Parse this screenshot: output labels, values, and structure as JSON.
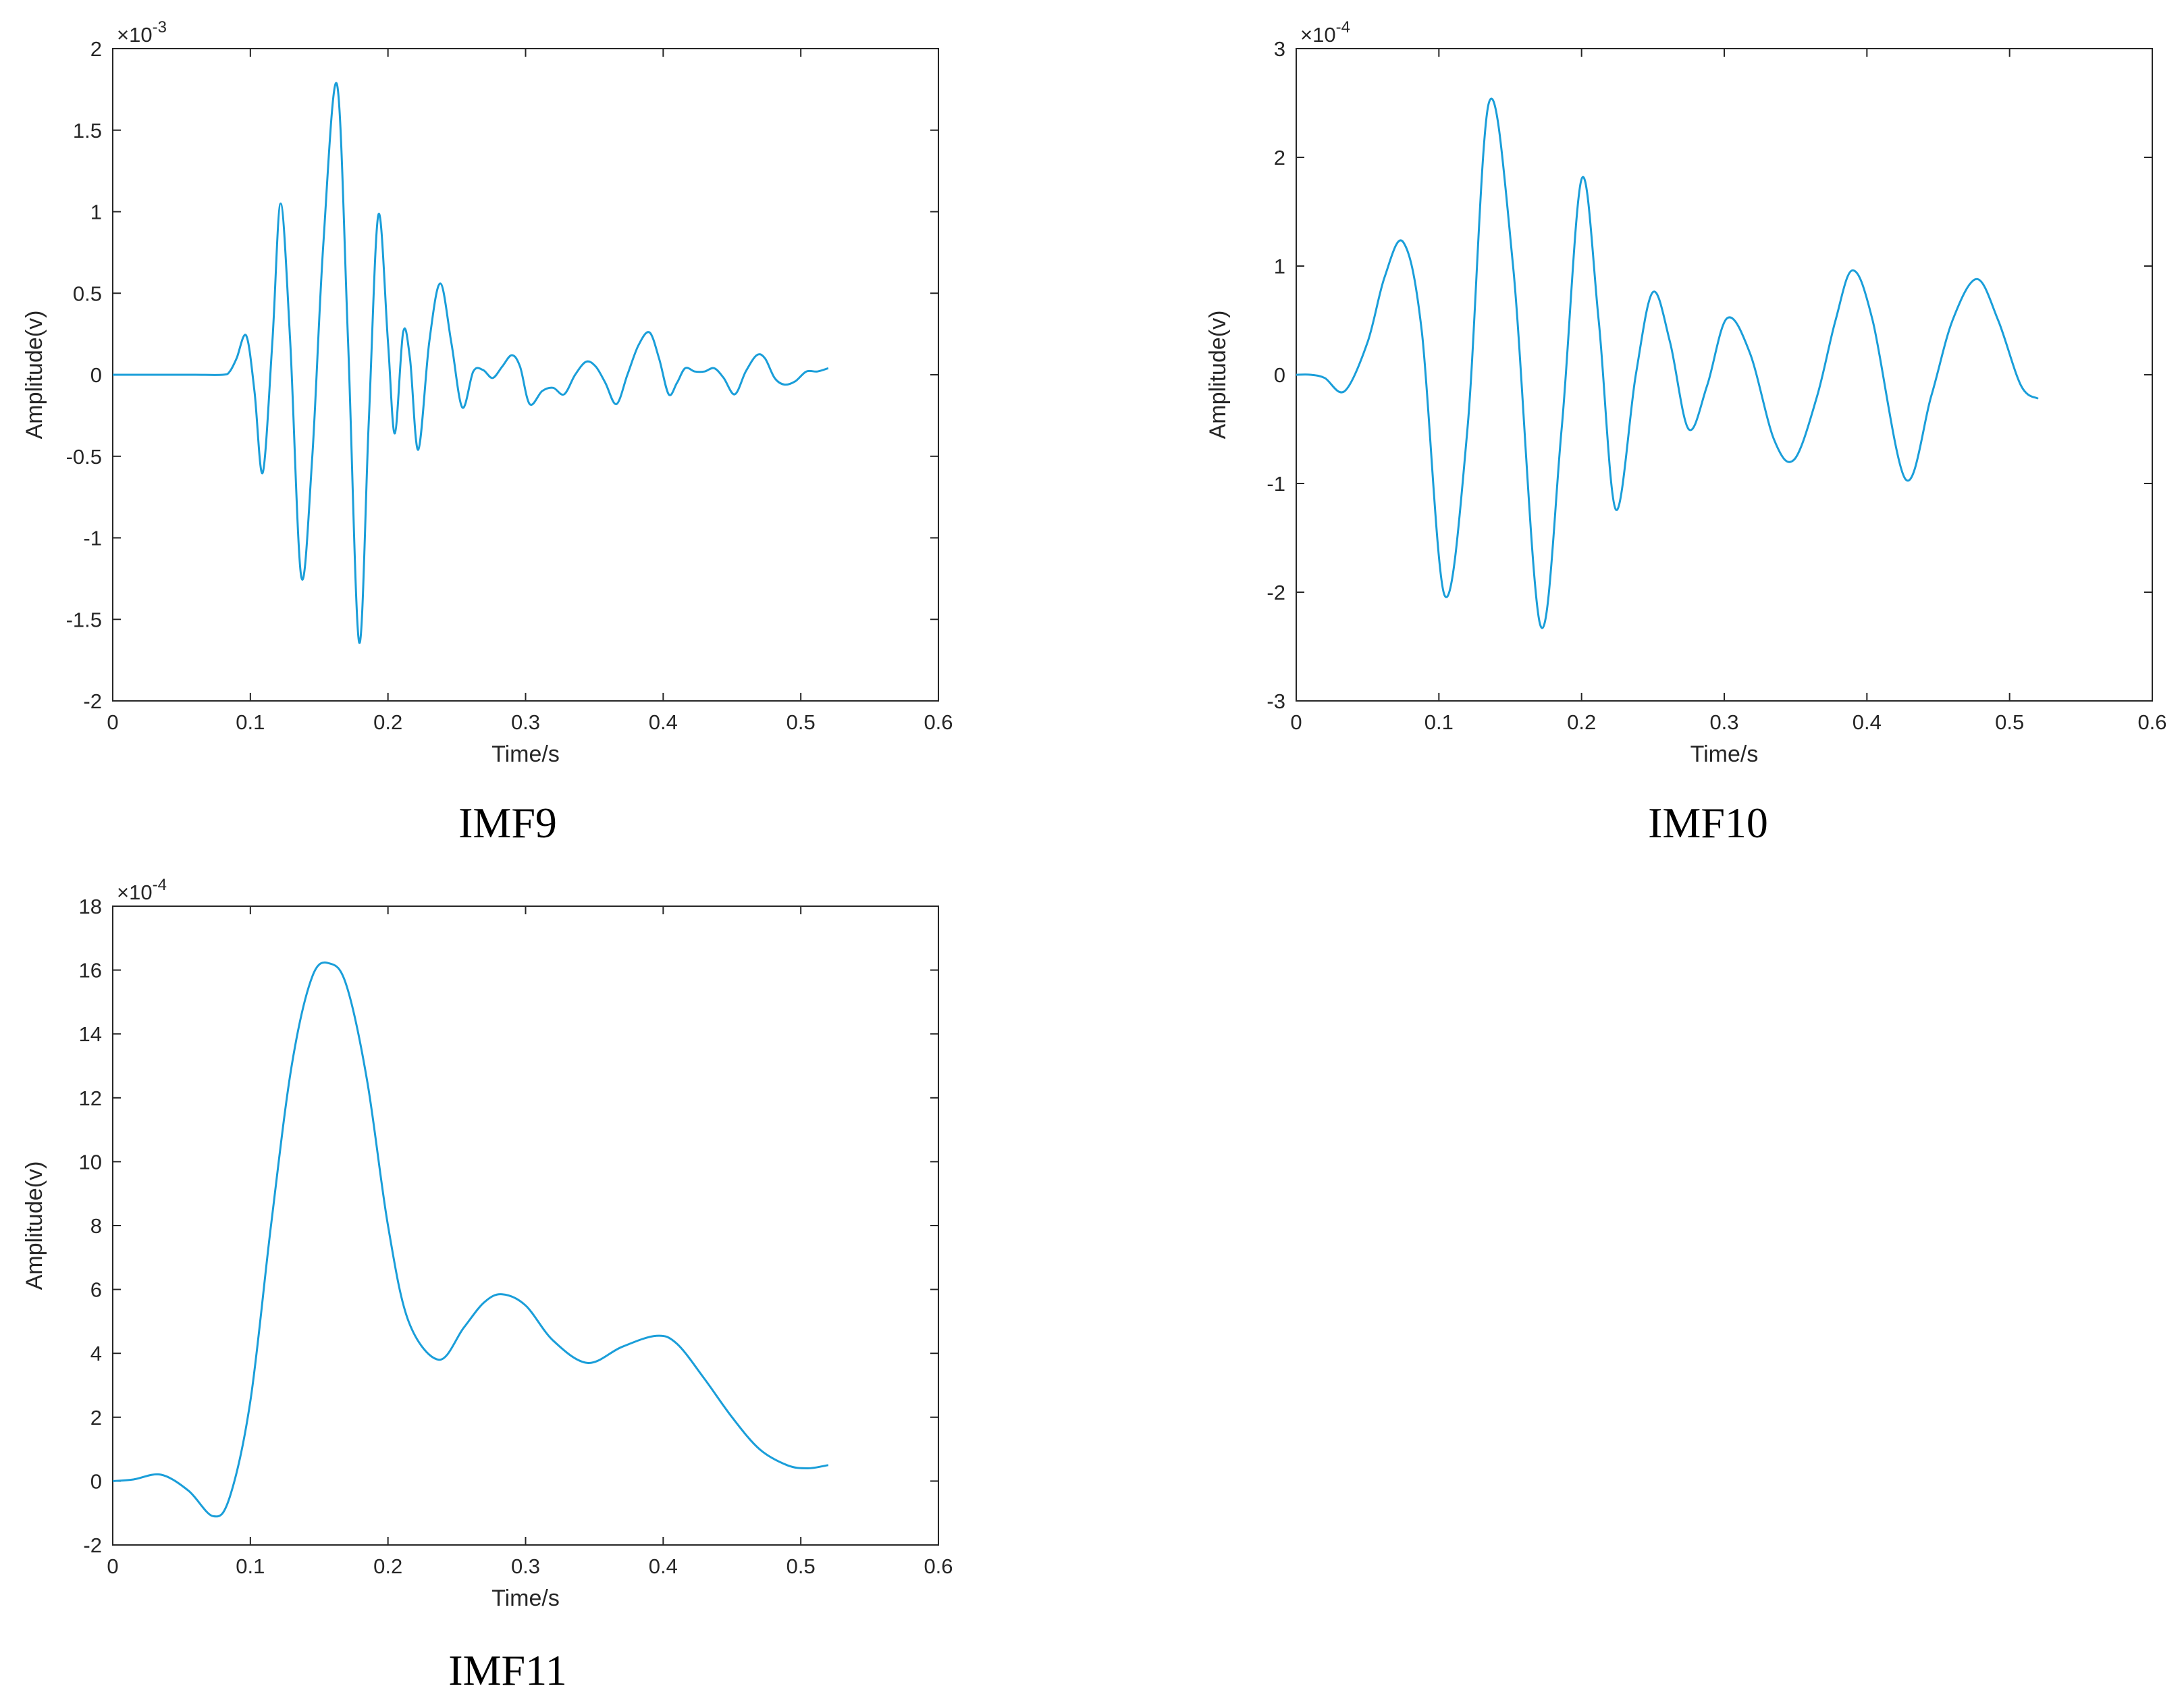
{
  "chart_data": [
    {
      "type": "line",
      "caption": "IMF9",
      "xlabel": "Time/s",
      "ylabel": "Amplitude(v)",
      "exponent_base": "×10",
      "exponent_power": "-3",
      "xlim": [
        0,
        0.6
      ],
      "ylim": [
        -2,
        2
      ],
      "xticks": [
        "0",
        "0.1",
        "0.2",
        "0.3",
        "0.4",
        "0.5",
        "0.6"
      ],
      "yticks": [
        "2",
        "1.5",
        "1",
        "0.5",
        "0",
        "-0.5",
        "-1",
        "-1.5",
        "-2"
      ],
      "color": "#1a9ed9",
      "grid": false,
      "series": [
        {
          "x": [
            0,
            0.02,
            0.04,
            0.06,
            0.08,
            0.085,
            0.09,
            0.097,
            0.103,
            0.109,
            0.116,
            0.122,
            0.129,
            0.137,
            0.145,
            0.153,
            0.163,
            0.171,
            0.179,
            0.186,
            0.193,
            0.2,
            0.205,
            0.211,
            0.216,
            0.222,
            0.23,
            0.238,
            0.246,
            0.254,
            0.262,
            0.269,
            0.276,
            0.283,
            0.29,
            0.296,
            0.303,
            0.312,
            0.32,
            0.328,
            0.336,
            0.344,
            0.351,
            0.358,
            0.366,
            0.374,
            0.382,
            0.39,
            0.397,
            0.404,
            0.41,
            0.416,
            0.423,
            0.43,
            0.437,
            0.444,
            0.452,
            0.46,
            0.468,
            0.474,
            0.481,
            0.488,
            0.496,
            0.504,
            0.512,
            0.52
          ],
          "y": [
            0,
            0,
            0,
            0,
            0,
            0.02,
            0.1,
            0.24,
            -0.1,
            -0.6,
            0.2,
            1.05,
            0.2,
            -1.24,
            -0.5,
            0.8,
            1.78,
            0.2,
            -1.64,
            -0.3,
            0.98,
            0.2,
            -0.36,
            0.26,
            0.1,
            -0.46,
            0.2,
            0.56,
            0.2,
            -0.2,
            0.02,
            0.03,
            -0.02,
            0.05,
            0.12,
            0.05,
            -0.18,
            -0.1,
            -0.08,
            -0.12,
            0,
            0.08,
            0.05,
            -0.05,
            -0.18,
            0,
            0.18,
            0.26,
            0.1,
            -0.12,
            -0.05,
            0.04,
            0.02,
            0.02,
            0.04,
            -0.02,
            -0.12,
            0.02,
            0.12,
            0.1,
            -0.02,
            -0.06,
            -0.04,
            0.02,
            0.02,
            0.04
          ]
        }
      ]
    },
    {
      "type": "line",
      "caption": "IMF10",
      "xlabel": "Time/s",
      "ylabel": "Amplitude(v)",
      "exponent_base": "×10",
      "exponent_power": "-4",
      "xlim": [
        0,
        0.6
      ],
      "ylim": [
        -3,
        3
      ],
      "xticks": [
        "0",
        "0.1",
        "0.2",
        "0.3",
        "0.4",
        "0.5",
        "0.6"
      ],
      "yticks": [
        "3",
        "2",
        "1",
        "0",
        "-1",
        "-2",
        "-3"
      ],
      "color": "#1a9ed9",
      "grid": false,
      "series": [
        {
          "x": [
            0,
            0.01,
            0.02,
            0.034,
            0.05,
            0.062,
            0.075,
            0.088,
            0.104,
            0.12,
            0.135,
            0.152,
            0.171,
            0.186,
            0.2,
            0.212,
            0.224,
            0.238,
            0.25,
            0.262,
            0.275,
            0.288,
            0.302,
            0.318,
            0.335,
            0.349,
            0.365,
            0.378,
            0.39,
            0.404,
            0.427,
            0.445,
            0.46,
            0.477,
            0.492,
            0.508,
            0.52
          ],
          "y": [
            0,
            0,
            -0.03,
            -0.15,
            0.3,
            0.9,
            1.22,
            0.4,
            -2.03,
            -0.5,
            2.5,
            1.0,
            -2.3,
            -0.5,
            1.8,
            0.5,
            -1.24,
            0.0,
            0.76,
            0.3,
            -0.5,
            -0.1,
            0.52,
            0.2,
            -0.6,
            -0.78,
            -0.2,
            0.5,
            0.96,
            0.5,
            -0.96,
            -0.2,
            0.5,
            0.88,
            0.5,
            -0.1,
            -0.22
          ]
        }
      ]
    },
    {
      "type": "line",
      "caption": "IMF11",
      "xlabel": "Time/s",
      "ylabel": "Amplitude(v)",
      "exponent_base": "×10",
      "exponent_power": "-4",
      "xlim": [
        0,
        0.6
      ],
      "ylim": [
        -2,
        18
      ],
      "xticks": [
        "0",
        "0.1",
        "0.2",
        "0.3",
        "0.4",
        "0.5",
        "0.6"
      ],
      "yticks": [
        "18",
        "16",
        "14",
        "12",
        "10",
        "8",
        "6",
        "4",
        "2",
        "0",
        "-2"
      ],
      "color": "#1a9ed9",
      "grid": false,
      "series": [
        {
          "x": [
            0,
            0.015,
            0.035,
            0.055,
            0.073,
            0.085,
            0.1,
            0.115,
            0.13,
            0.145,
            0.158,
            0.17,
            0.185,
            0.2,
            0.215,
            0.237,
            0.255,
            0.27,
            0.283,
            0.3,
            0.32,
            0.345,
            0.37,
            0.395,
            0.41,
            0.43,
            0.45,
            0.47,
            0.49,
            0.505,
            0.52
          ],
          "y": [
            0,
            0.05,
            0.2,
            -0.3,
            -1.1,
            -0.5,
            2.5,
            8.0,
            13.0,
            15.8,
            16.2,
            15.5,
            12.5,
            8.0,
            5.0,
            3.8,
            4.8,
            5.6,
            5.85,
            5.5,
            4.4,
            3.7,
            4.2,
            4.55,
            4.3,
            3.2,
            2.0,
            1.0,
            0.5,
            0.4,
            0.5
          ]
        }
      ]
    }
  ]
}
